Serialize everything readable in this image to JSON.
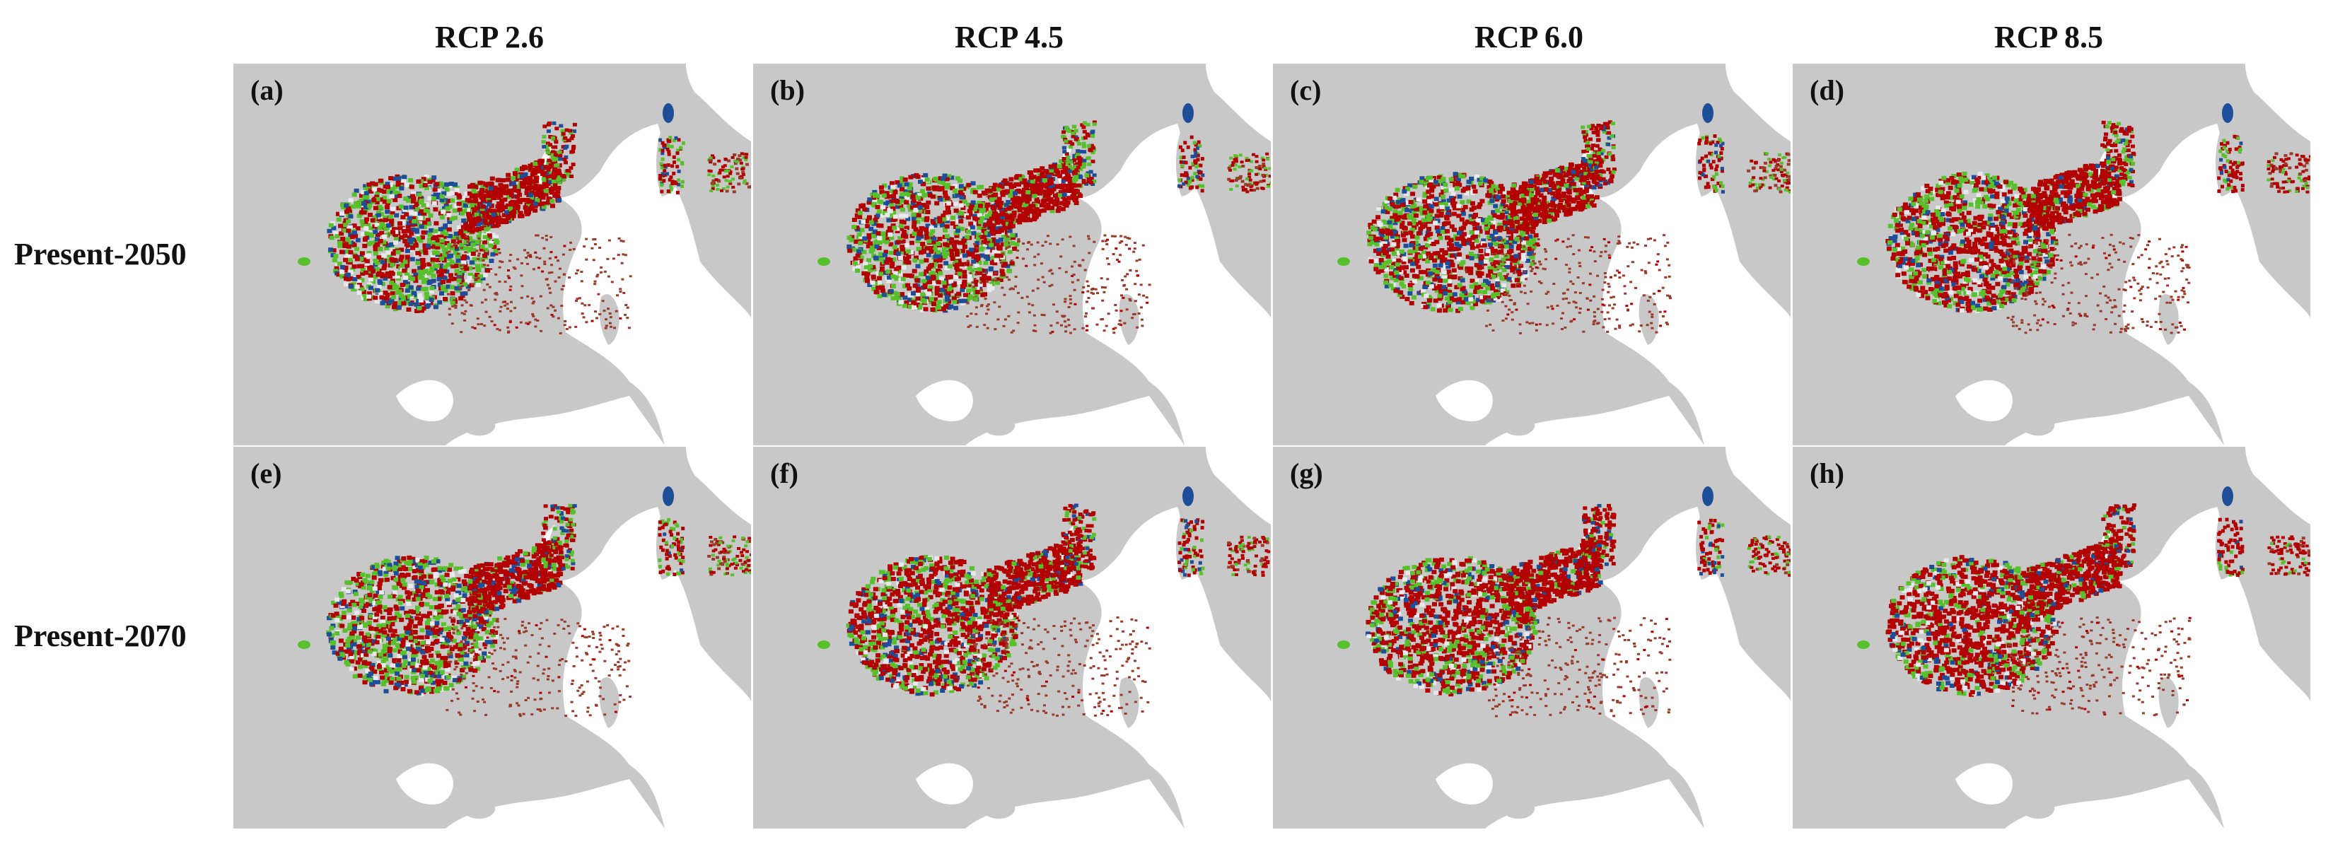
{
  "columns": [
    {
      "label": "RCP 2.6"
    },
    {
      "label": "RCP 4.5"
    },
    {
      "label": "RCP 6.0"
    },
    {
      "label": "RCP 8.5"
    }
  ],
  "rows": [
    {
      "label": "Present-2050"
    },
    {
      "label": "Present-2070"
    }
  ],
  "panels": [
    {
      "letter": "(a)",
      "red_share": 0.45
    },
    {
      "letter": "(b)",
      "red_share": 0.52
    },
    {
      "letter": "(c)",
      "red_share": 0.6
    },
    {
      "letter": "(d)",
      "red_share": 0.66
    },
    {
      "letter": "(e)",
      "red_share": 0.5
    },
    {
      "letter": "(f)",
      "red_share": 0.68
    },
    {
      "letter": "(g)",
      "red_share": 0.74
    },
    {
      "letter": "(h)",
      "red_share": 0.82
    }
  ],
  "colors": {
    "land": "#c8c8c8",
    "sea": "#ffffff",
    "loss": "#b30000",
    "gain": "#57c02b",
    "stable": "#1f4e99",
    "unsuitable_inner": "#e8e8ee",
    "scatter": "#9a3a2a"
  }
}
